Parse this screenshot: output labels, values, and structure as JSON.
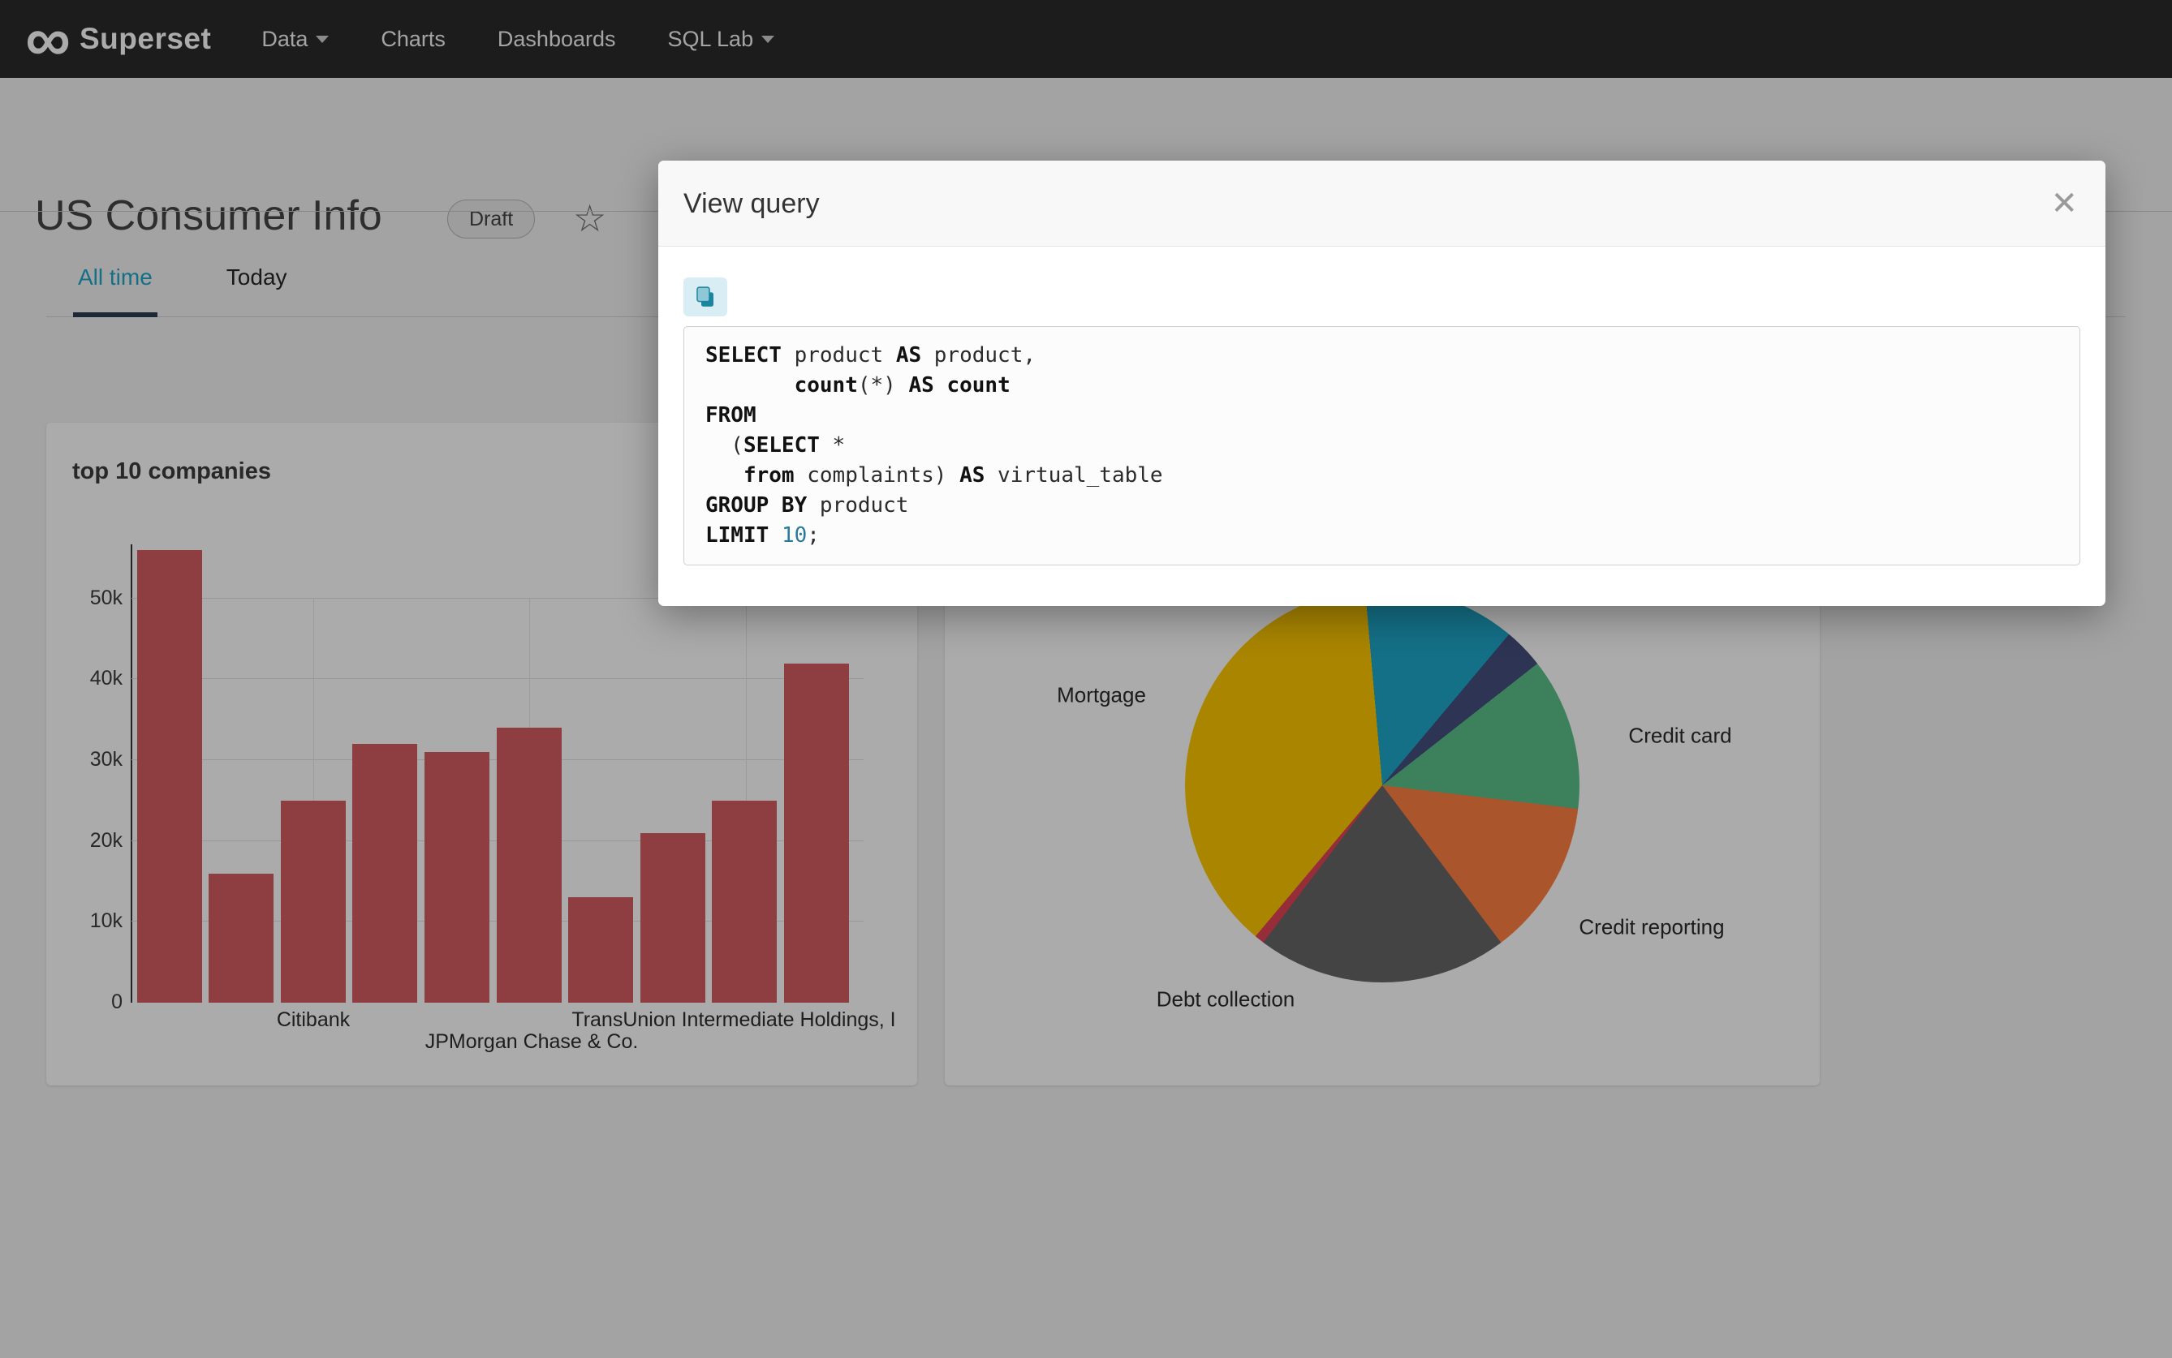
{
  "navbar": {
    "brand": "Superset",
    "items": [
      {
        "label": "Data",
        "has_caret": true
      },
      {
        "label": "Charts",
        "has_caret": false
      },
      {
        "label": "Dashboards",
        "has_caret": false
      },
      {
        "label": "SQL Lab",
        "has_caret": true
      }
    ]
  },
  "header": {
    "title": "US Consumer Info",
    "badge": "Draft"
  },
  "icons": {
    "infinity": "∞",
    "star": "☆",
    "close": "✕"
  },
  "tabs": {
    "active_index": 0,
    "items": [
      {
        "label": "All time"
      },
      {
        "label": "Today"
      }
    ]
  },
  "modal": {
    "title": "View query",
    "copy_button": "copy-to-clipboard",
    "sql_lines": [
      [
        [
          "SELECT",
          "k"
        ],
        [
          " product ",
          ""
        ],
        [
          "AS",
          "k"
        ],
        [
          " product,",
          ""
        ]
      ],
      [
        [
          "       ",
          ""
        ],
        [
          "count",
          "k"
        ],
        [
          "(*) ",
          ""
        ],
        [
          "AS",
          "k"
        ],
        [
          " ",
          ""
        ],
        [
          "count",
          "k"
        ]
      ],
      [
        [
          "FROM",
          "k"
        ]
      ],
      [
        [
          "  (",
          ""
        ],
        [
          "SELECT",
          "k"
        ],
        [
          " *",
          ""
        ]
      ],
      [
        [
          "   ",
          ""
        ],
        [
          "from",
          "k"
        ],
        [
          " complaints) ",
          ""
        ],
        [
          "AS",
          "k"
        ],
        [
          " virtual_table",
          ""
        ]
      ],
      [
        [
          "GROUP BY",
          "k"
        ],
        [
          " product",
          ""
        ]
      ],
      [
        [
          "LIMIT",
          "k"
        ],
        [
          " ",
          ""
        ],
        [
          "10",
          "num"
        ],
        [
          ";",
          ""
        ]
      ]
    ]
  },
  "chart_data": [
    {
      "type": "bar",
      "title": "top 10 companies",
      "values": [
        56000,
        16000,
        25000,
        32000,
        31000,
        34000,
        13000,
        21000,
        25000,
        42000
      ],
      "ylim": [
        0,
        56000
      ],
      "y_ticks": [
        {
          "label": "0",
          "value": 0
        },
        {
          "label": "10k",
          "value": 10000
        },
        {
          "label": "20k",
          "value": 20000
        },
        {
          "label": "30k",
          "value": 30000
        },
        {
          "label": "40k",
          "value": 40000
        },
        {
          "label": "50k",
          "value": 50000
        }
      ],
      "x_tick_labels": [
        "Citibank",
        "JPMorgan Chase & Co.",
        "TransUnion Intermediate Holdings, I"
      ],
      "bar_color": "#d45d60",
      "grid": true,
      "xlabel": "",
      "ylabel": ""
    },
    {
      "type": "pie",
      "title": "",
      "slices": [
        {
          "label": "",
          "color": "#1FA8C9",
          "pct": 12.5
        },
        {
          "label": "",
          "color": "#454E7C",
          "pct": 3.3
        },
        {
          "label": "Credit card",
          "color": "#5AC189",
          "pct": 12.5
        },
        {
          "label": "Credit reporting",
          "color": "#FF7F44",
          "pct": 12.8
        },
        {
          "label": "Debt collection",
          "color": "#666666",
          "pct": 20.6
        },
        {
          "label": "",
          "color": "#E04355",
          "pct": 0.8
        },
        {
          "label": "Mortgage",
          "color": "#FCC700",
          "pct": 37.5
        }
      ],
      "legend_position": "none"
    }
  ]
}
